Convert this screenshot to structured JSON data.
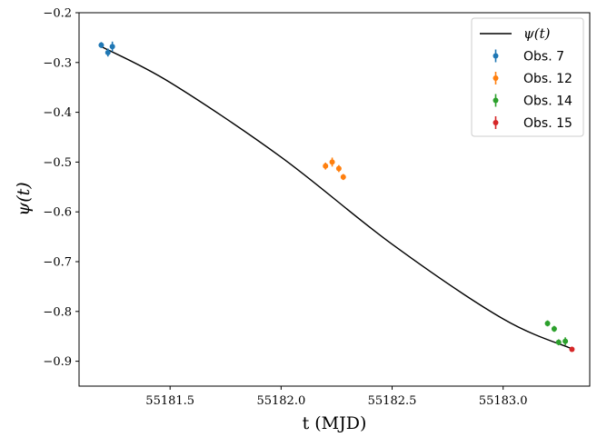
{
  "chart_data": {
    "type": "scatter",
    "xlabel": "t (MJD)",
    "ylabel": "ψ(t)",
    "xlim": [
      55181.09,
      55183.39
    ],
    "ylim": [
      -0.95,
      -0.2
    ],
    "xticks": [
      55181.5,
      55182.0,
      55182.5,
      55183.0
    ],
    "xtick_labels": [
      "55181.5",
      "55182.0",
      "55182.5",
      "55183.0"
    ],
    "yticks": [
      -0.2,
      -0.3,
      -0.4,
      -0.5,
      -0.6,
      -0.7,
      -0.8,
      -0.9
    ],
    "ytick_labels": [
      "−0.2",
      "−0.3",
      "−0.4",
      "−0.5",
      "−0.6",
      "−0.7",
      "−0.8",
      "−0.9"
    ],
    "grid": false,
    "legend_position": "top-right",
    "model": {
      "name": "ψ(t)",
      "color": "#000000",
      "x": [
        55181.19,
        55181.5,
        55182.0,
        55182.5,
        55183.0,
        55183.31
      ],
      "y": [
        -0.268,
        -0.34,
        -0.49,
        -0.665,
        -0.815,
        -0.875
      ]
    },
    "series": [
      {
        "name": "Obs. 7",
        "color": "#1f77b4",
        "points": [
          {
            "x": 55181.19,
            "y": -0.265,
            "err": 0.006
          },
          {
            "x": 55181.22,
            "y": -0.28,
            "err": 0.008
          },
          {
            "x": 55181.24,
            "y": -0.268,
            "err": 0.01
          }
        ]
      },
      {
        "name": "Obs. 12",
        "color": "#ff7f0e",
        "points": [
          {
            "x": 55182.2,
            "y": -0.508,
            "err": 0.007
          },
          {
            "x": 55182.23,
            "y": -0.5,
            "err": 0.009
          },
          {
            "x": 55182.26,
            "y": -0.513,
            "err": 0.007
          },
          {
            "x": 55182.28,
            "y": -0.53,
            "err": 0.006
          }
        ]
      },
      {
        "name": "Obs. 14",
        "color": "#2ca02c",
        "points": [
          {
            "x": 55183.2,
            "y": -0.824,
            "err": 0.006
          },
          {
            "x": 55183.23,
            "y": -0.835,
            "err": 0.006
          },
          {
            "x": 55183.25,
            "y": -0.862,
            "err": 0.006
          },
          {
            "x": 55183.28,
            "y": -0.86,
            "err": 0.008
          }
        ]
      },
      {
        "name": "Obs. 15",
        "color": "#d62728",
        "points": [
          {
            "x": 55183.31,
            "y": -0.876,
            "err": 0.005
          }
        ]
      }
    ]
  }
}
